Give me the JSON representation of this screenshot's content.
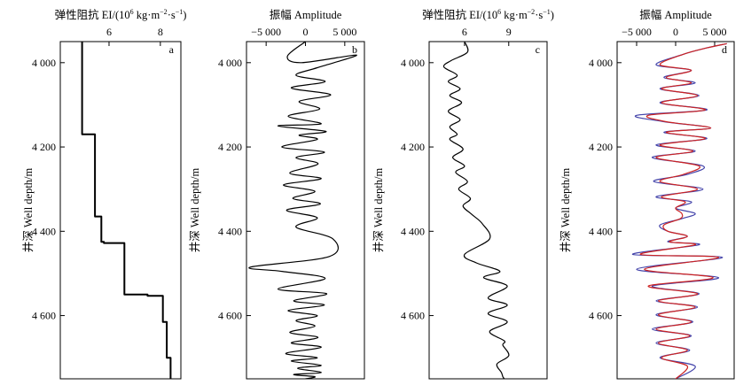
{
  "chart_data": [
    {
      "panel": "a",
      "type": "line",
      "title_prefix": "弹性阻抗 EI/(10",
      "title_sup1": "6",
      "title_mid": " kg·m",
      "title_sup2": "−2",
      "title_mid2": "·s",
      "title_sup3": "−1",
      "title_suffix": ")",
      "ylabel": "井深 Well depth/m",
      "xlim": [
        4.1,
        8.8
      ],
      "ylim": [
        3950,
        4750
      ],
      "xticks": [
        6,
        8
      ],
      "xtick_labels": [
        "6",
        "8"
      ],
      "yticks": [
        4000,
        4200,
        4400,
        4600
      ],
      "ytick_labels": [
        "4 000",
        "4 200",
        "4 400",
        "4 600"
      ],
      "series": [
        {
          "color": "#000000",
          "x": [
            4.95,
            4.95,
            5.45,
            5.45,
            5.7,
            5.7,
            5.8,
            5.8,
            6.6,
            6.6,
            7.5,
            7.5,
            8.1,
            8.1,
            8.25,
            8.25,
            8.4,
            8.4
          ],
          "y": [
            3950,
            4170,
            4170,
            4365,
            4365,
            4425,
            4425,
            4428,
            4428,
            4550,
            4550,
            4553,
            4553,
            4615,
            4615,
            4700,
            4700,
            4750
          ]
        }
      ]
    },
    {
      "panel": "b",
      "type": "line",
      "title": "振幅 Amplitude",
      "ylabel": "井深 Well depth/m",
      "xlim": [
        -7500,
        7500
      ],
      "ylim": [
        3950,
        4750
      ],
      "xticks": [
        -5000,
        0,
        5000
      ],
      "xtick_labels": [
        "−5 000",
        "0",
        "5 000"
      ],
      "yticks": [
        4000,
        4200,
        4400,
        4600
      ],
      "ytick_labels": [
        "4 000",
        "4 200",
        "4 400",
        "4 600"
      ],
      "series": [
        {
          "color": "#000000",
          "x": [
            0,
            -2300,
            -500,
            6500,
            1500,
            -1200,
            2500,
            -1800,
            3200,
            -800,
            1800,
            -2200,
            2000,
            -3500,
            2600,
            -800,
            1500,
            -3000,
            2400,
            -1200,
            1600,
            -2000,
            2000,
            -2800,
            1200,
            -1600,
            1900,
            -2400,
            1500,
            -1200,
            3500,
            3000,
            -7000,
            -3000,
            2500,
            -3500,
            2700,
            -1500,
            2400,
            -2200,
            1500,
            -1200,
            1200,
            -2000,
            1600,
            -1800,
            2000,
            -2500,
            1500,
            -1800,
            2000,
            -1000,
            2000,
            -1500,
            1200,
            0
          ],
          "y": [
            3950,
            3985,
            4000,
            3982,
            4012,
            4030,
            4045,
            4060,
            4076,
            4092,
            4110,
            4127,
            4145,
            4150,
            4163,
            4172,
            4182,
            4200,
            4212,
            4225,
            4240,
            4262,
            4275,
            4290,
            4305,
            4322,
            4335,
            4350,
            4368,
            4390,
            4418,
            4460,
            4485,
            4495,
            4512,
            4537,
            4548,
            4565,
            4575,
            4588,
            4600,
            4612,
            4625,
            4640,
            4652,
            4665,
            4675,
            4690,
            4700,
            4708,
            4718,
            4725,
            4735,
            4740,
            4745,
            4750
          ]
        }
      ]
    },
    {
      "panel": "c",
      "type": "line",
      "title_prefix": "弹性阻抗 EI/(10",
      "title_sup1": "6",
      "title_mid": " kg·m",
      "title_sup2": "−2",
      "title_mid2": "·s",
      "title_sup3": "−1",
      "title_suffix": ")",
      "ylabel": "井深 Well depth/m",
      "xlim": [
        3.6,
        11.6
      ],
      "ylim": [
        3950,
        4750
      ],
      "xticks": [
        6,
        9
      ],
      "xtick_labels": [
        "6",
        "9"
      ],
      "yticks": [
        4000,
        4200,
        4400,
        4600
      ],
      "ytick_labels": [
        "4 000",
        "4 200",
        "4 400",
        "4 600"
      ],
      "series": [
        {
          "color": "#000000",
          "x": [
            6.0,
            6.2,
            5.1,
            4.6,
            5.5,
            4.9,
            5.7,
            5.0,
            5.8,
            4.9,
            5.7,
            5.0,
            5.5,
            5.0,
            5.9,
            5.2,
            6.0,
            5.4,
            6.2,
            5.6,
            6.4,
            5.9,
            6.5,
            7.2,
            7.7,
            6.0,
            6.8,
            8.4,
            7.3,
            8.9,
            7.6,
            8.9,
            7.6,
            8.9,
            7.7,
            8.7,
            8.6,
            9.0,
            8.2,
            8.5,
            8.6,
            8.7
          ],
          "y": [
            3950,
            3975,
            3995,
            4010,
            4030,
            4045,
            4062,
            4078,
            4095,
            4115,
            4135,
            4152,
            4170,
            4182,
            4205,
            4225,
            4245,
            4260,
            4282,
            4300,
            4322,
            4340,
            4360,
            4382,
            4418,
            4455,
            4475,
            4495,
            4510,
            4530,
            4558,
            4575,
            4595,
            4615,
            4638,
            4660,
            4670,
            4695,
            4715,
            4735,
            4745,
            4750
          ]
        }
      ]
    },
    {
      "panel": "d",
      "type": "line",
      "title": "振幅 Amplitude",
      "ylabel": "井深 Well depth/m",
      "xlim": [
        -7500,
        7500
      ],
      "ylim": [
        3950,
        4750
      ],
      "xticks": [
        -5000,
        0,
        5000
      ],
      "xtick_labels": [
        "−5 000",
        "0",
        "5 000"
      ],
      "yticks": [
        4000,
        4200,
        4400,
        4600
      ],
      "ytick_labels": [
        "4 000",
        "4 200",
        "4 400",
        "4 600"
      ],
      "series": [
        {
          "color": "#4444aa",
          "x": [
            6500,
            4000,
            1000,
            -2500,
            2000,
            -1500,
            2500,
            -2000,
            3000,
            -2000,
            4000,
            -5000,
            -1500,
            4500,
            -1500,
            4000,
            -2500,
            2500,
            -3000,
            3500,
            1500,
            -2800,
            3500,
            -2500,
            2000,
            0,
            2500,
            800,
            -2000,
            -1000,
            1500,
            -1000,
            3000,
            -5500,
            6000,
            -5000,
            5500,
            -3000,
            3000,
            -2500,
            2800,
            -2500,
            2200,
            -3000,
            2000,
            -2500,
            1800,
            -2000,
            2500,
            0
          ],
          "y": [
            3955,
            3965,
            3980,
            4005,
            4018,
            4035,
            4048,
            4062,
            4078,
            4095,
            4112,
            4125,
            4140,
            4155,
            4165,
            4180,
            4195,
            4210,
            4225,
            4245,
            4265,
            4282,
            4300,
            4318,
            4330,
            4345,
            4358,
            4370,
            4385,
            4400,
            4412,
            4425,
            4432,
            4455,
            4462,
            4490,
            4510,
            4530,
            4548,
            4565,
            4580,
            4598,
            4615,
            4632,
            4648,
            4665,
            4682,
            4700,
            4720,
            4750
          ]
        },
        {
          "color": "#cc2222",
          "x": [
            6500,
            4000,
            1000,
            -2000,
            2000,
            -1200,
            2000,
            -1800,
            2800,
            -1800,
            3800,
            -3500,
            -1200,
            4500,
            -1200,
            3800,
            -2000,
            2200,
            -2500,
            3000,
            1000,
            -2000,
            2800,
            -1800,
            1200,
            0,
            800,
            600,
            -1500,
            -1000,
            1500,
            -800,
            2500,
            -4500,
            5500,
            -4000,
            4800,
            -3500,
            2800,
            -2200,
            2500,
            -2200,
            2000,
            -2500,
            1800,
            -2200,
            1500,
            -1800,
            1500,
            0
          ],
          "y": [
            3955,
            3965,
            3980,
            4005,
            4018,
            4035,
            4048,
            4062,
            4078,
            4095,
            4112,
            4125,
            4140,
            4155,
            4165,
            4180,
            4195,
            4210,
            4225,
            4245,
            4265,
            4282,
            4300,
            4318,
            4330,
            4345,
            4358,
            4370,
            4385,
            4400,
            4412,
            4425,
            4432,
            4455,
            4462,
            4490,
            4510,
            4530,
            4548,
            4565,
            4580,
            4598,
            4615,
            4632,
            4648,
            4665,
            4682,
            4700,
            4720,
            4750
          ]
        }
      ]
    }
  ]
}
